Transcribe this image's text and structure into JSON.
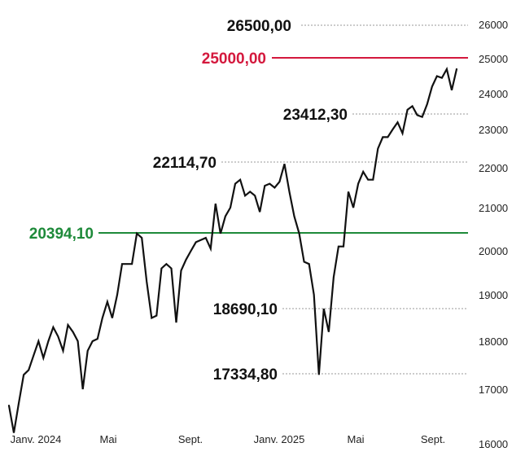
{
  "chart_data": {
    "type": "line",
    "title": "",
    "xlabel": "",
    "ylabel": "",
    "ylim": [
      16000,
      26500
    ],
    "yticks": [
      "26000",
      "25000",
      "24000",
      "23000",
      "22000",
      "21000",
      "20000",
      "19000",
      "18000",
      "17000",
      "16000"
    ],
    "yticks_values": [
      26000,
      25000,
      24000,
      23000,
      22000,
      21000,
      20000,
      19000,
      18000,
      17000,
      16000
    ],
    "xticks": [
      "Janv. 2024",
      "Mai",
      "Sept.",
      "Janv. 2025",
      "Mai",
      "Sept."
    ],
    "xticks_dates": [
      "2024-01-01",
      "2024-05-01",
      "2024-09-01",
      "2025-01-01",
      "2025-05-01",
      "2025-09-01"
    ],
    "grid": false,
    "colors": {
      "line": "#111111",
      "support": "#1e8a3a",
      "target": "#d4183d",
      "guide": "#999999"
    },
    "series": [
      {
        "name": "",
        "x": [
          "2023-12-27",
          "2024-01-03",
          "2024-01-10",
          "2024-01-17",
          "2024-01-24",
          "2024-01-31",
          "2024-02-07",
          "2024-02-14",
          "2024-02-21",
          "2024-02-28",
          "2024-03-06",
          "2024-03-13",
          "2024-03-20",
          "2024-03-27",
          "2024-04-03",
          "2024-04-10",
          "2024-04-17",
          "2024-04-24",
          "2024-05-01",
          "2024-05-08",
          "2024-05-15",
          "2024-05-22",
          "2024-05-29",
          "2024-06-05",
          "2024-06-12",
          "2024-06-19",
          "2024-06-26",
          "2024-07-03",
          "2024-07-10",
          "2024-07-17",
          "2024-07-24",
          "2024-07-31",
          "2024-08-07",
          "2024-08-14",
          "2024-08-21",
          "2024-08-28",
          "2024-09-04",
          "2024-09-11",
          "2024-09-18",
          "2024-09-25",
          "2024-10-02",
          "2024-10-09",
          "2024-10-16",
          "2024-10-23",
          "2024-10-30",
          "2024-11-06",
          "2024-11-13",
          "2024-11-20",
          "2024-11-27",
          "2024-12-04",
          "2024-12-11",
          "2024-12-18",
          "2024-12-25",
          "2025-01-01",
          "2025-01-08",
          "2025-01-15",
          "2025-01-22",
          "2025-01-29",
          "2025-02-05",
          "2025-02-12",
          "2025-02-19",
          "2025-02-26",
          "2025-03-05",
          "2025-03-12",
          "2025-03-19",
          "2025-03-26",
          "2025-04-02",
          "2025-04-09",
          "2025-04-16",
          "2025-04-23",
          "2025-04-30",
          "2025-05-07",
          "2025-05-14",
          "2025-05-21",
          "2025-05-28",
          "2025-06-04",
          "2025-06-11",
          "2025-06-18",
          "2025-06-25",
          "2025-07-02",
          "2025-07-09",
          "2025-07-16",
          "2025-07-23",
          "2025-07-30",
          "2025-08-06",
          "2025-08-13",
          "2025-08-20",
          "2025-08-27",
          "2025-09-03",
          "2025-09-10",
          "2025-09-17",
          "2025-09-24"
        ],
        "values": [
          16700,
          16200,
          16750,
          17300,
          17400,
          17700,
          18000,
          17650,
          18000,
          18300,
          18100,
          17800,
          18350,
          18200,
          18000,
          17000,
          17800,
          18000,
          18050,
          18500,
          18850,
          18500,
          19000,
          19700,
          19700,
          19700,
          20400,
          20300,
          19300,
          18500,
          18550,
          19600,
          19700,
          19600,
          18400,
          19550,
          19800,
          20000,
          20200,
          20250,
          20300,
          20050,
          21100,
          20400,
          20800,
          21000,
          21600,
          21700,
          21300,
          21400,
          21300,
          20900,
          21550,
          21600,
          21500,
          21650,
          22100,
          21400,
          20800,
          20400,
          19750,
          19700,
          19000,
          17300,
          18700,
          18200,
          19400,
          20100,
          20100,
          21400,
          21000,
          21600,
          21900,
          21700,
          21700,
          22500,
          22800,
          22800,
          23000,
          23200,
          22900,
          23550,
          23650,
          23400,
          23350,
          23700,
          24200,
          24500,
          24450,
          24700,
          24100,
          24700
        ]
      }
    ],
    "annotations": [
      {
        "label": "26500,00",
        "value": 26500,
        "color": "#111111",
        "style": "dotted"
      },
      {
        "label": "25000,00",
        "value": 25000,
        "color": "#d4183d",
        "style": "solid"
      },
      {
        "label": "23412,30",
        "value": 23412.3,
        "color": "#111111",
        "style": "dotted"
      },
      {
        "label": "22114,70",
        "value": 22114.7,
        "color": "#111111",
        "style": "dotted"
      },
      {
        "label": "20394,10",
        "value": 20394.1,
        "color": "#1e8a3a",
        "style": "solid"
      },
      {
        "label": "18690,10",
        "value": 18690.1,
        "color": "#111111",
        "style": "dotted"
      },
      {
        "label": "17334,80",
        "value": 17334.8,
        "color": "#111111",
        "style": "dotted"
      }
    ]
  }
}
